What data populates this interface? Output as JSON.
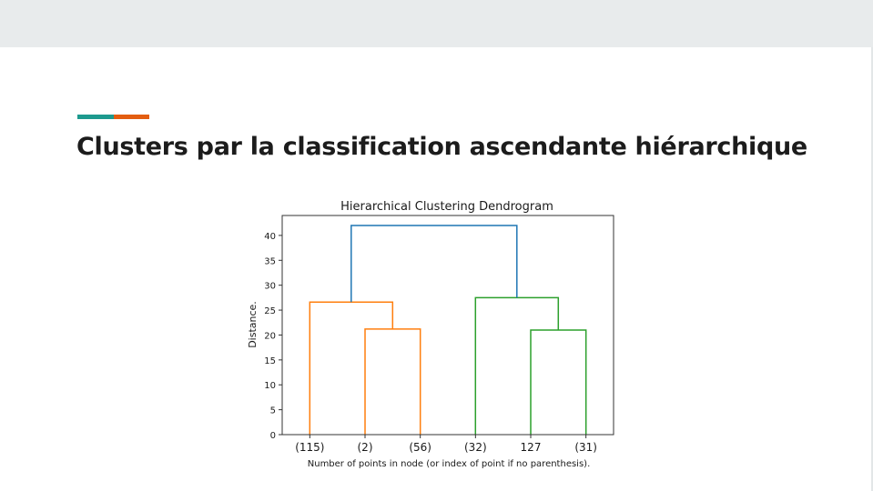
{
  "slide": {
    "title": "Clusters par la classification ascendante hiérarchique",
    "accent_colors": [
      "#1d9a8e",
      "#e35d10"
    ]
  },
  "chart_data": {
    "type": "dendrogram",
    "title": "Hierarchical Clustering Dendrogram",
    "xlabel": "Number of points in node (or index of point if no parenthesis).",
    "ylabel": "Distance.",
    "ylim": [
      0,
      44
    ],
    "yticks": [
      0,
      5,
      10,
      15,
      20,
      25,
      30,
      35,
      40
    ],
    "leaves": [
      "(115)",
      "(2)",
      "(56)",
      "(32)",
      "127",
      "(31)"
    ],
    "links": [
      {
        "left": "(2)",
        "right": "(56)",
        "height": 21.2,
        "color": "#ff7f0e"
      },
      {
        "left": "(115)",
        "right": "[(2),(56)]",
        "height": 26.6,
        "color": "#ff7f0e"
      },
      {
        "left": "127",
        "right": "(31)",
        "height": 21.0,
        "color": "#2ca02c"
      },
      {
        "left": "(32)",
        "right": "[127,(31)]",
        "height": 27.5,
        "color": "#2ca02c"
      },
      {
        "left": "orange cluster",
        "right": "green cluster",
        "height": 42.0,
        "color": "#1f77b4"
      }
    ],
    "grid": false,
    "legend": "none"
  }
}
